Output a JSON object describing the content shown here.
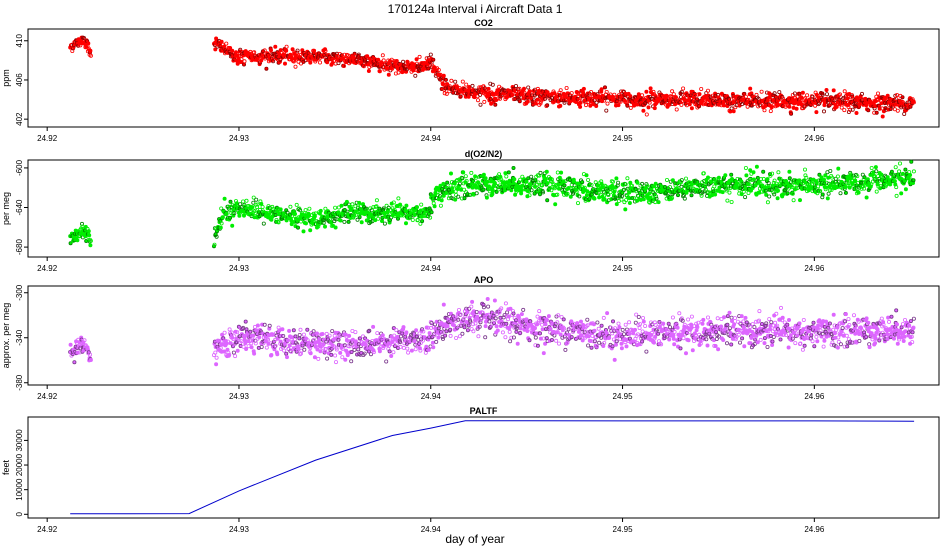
{
  "figure": {
    "title": "170124a   Interval i Aircraft Data 1",
    "xlabel": "day of year"
  },
  "chart_data": [
    {
      "type": "scatter",
      "title": "CO2",
      "ylabel": "ppm",
      "xlim": [
        24.919,
        24.9665
      ],
      "ylim": [
        401.2,
        411.2
      ],
      "xticks": [
        24.92,
        24.93,
        24.94,
        24.95,
        24.96
      ],
      "xtick_labels": [
        "24.92",
        "24.93",
        "24.94",
        "24.95",
        "24.96"
      ],
      "yticks": [
        402,
        406,
        410
      ],
      "ytick_labels": [
        "402",
        "406",
        "410"
      ],
      "color": "#ff0000",
      "grid": false,
      "segments": [
        {
          "x_start": 24.9212,
          "x_end": 24.9223,
          "points": [
            [
              24.9212,
              409.4
            ],
            [
              24.9216,
              409.8
            ],
            [
              24.9219,
              410.2
            ],
            [
              24.9221,
              409.5
            ],
            [
              24.9223,
              408.6
            ]
          ],
          "noise": 0.45
        },
        {
          "x_start": 24.9287,
          "x_end": 24.93,
          "points": [
            [
              24.9287,
              409.9
            ],
            [
              24.9291,
              409.3
            ],
            [
              24.93,
              408.2
            ]
          ],
          "noise": 0.55
        },
        {
          "x_start": 24.93,
          "x_end": 24.94,
          "points": [
            [
              24.93,
              408.4
            ],
            [
              24.934,
              408.4
            ],
            [
              24.936,
              408.1
            ],
            [
              24.938,
              407.5
            ],
            [
              24.9395,
              407.2
            ],
            [
              24.94,
              407.9
            ]
          ],
          "noise": 0.6
        },
        {
          "x_start": 24.94,
          "x_end": 24.9652,
          "points": [
            [
              24.94,
              407.6
            ],
            [
              24.9408,
              405.3
            ],
            [
              24.942,
              404.8
            ],
            [
              24.945,
              404.3
            ],
            [
              24.95,
              404.1
            ],
            [
              24.955,
              403.9
            ],
            [
              24.96,
              403.8
            ],
            [
              24.9652,
              403.6
            ]
          ],
          "noise": 0.7
        }
      ]
    },
    {
      "type": "scatter",
      "title": "d(O2/N2)",
      "ylabel": "per meg",
      "xlim": [
        24.919,
        24.9665
      ],
      "ylim": [
        -690,
        -592
      ],
      "xticks": [
        24.92,
        24.93,
        24.94,
        24.95,
        24.96
      ],
      "xtick_labels": [
        "24.92",
        "24.93",
        "24.94",
        "24.95",
        "24.96"
      ],
      "yticks": [
        -680,
        -640,
        -600
      ],
      "ytick_labels": [
        "-680",
        "-640",
        "-600"
      ],
      "color": "#00ee00",
      "grid": false,
      "segments": [
        {
          "x_start": 24.9212,
          "x_end": 24.9223,
          "points": [
            [
              24.9212,
              -672
            ],
            [
              24.9216,
              -668
            ],
            [
              24.9219,
              -662
            ],
            [
              24.9223,
              -672
            ]
          ],
          "noise": 7
        },
        {
          "x_start": 24.9287,
          "x_end": 24.94,
          "points": [
            [
              24.9287,
              -670
            ],
            [
              24.9292,
              -645
            ],
            [
              24.93,
              -640
            ],
            [
              24.932,
              -648
            ],
            [
              24.934,
              -652
            ],
            [
              24.936,
              -645
            ],
            [
              24.938,
              -647
            ],
            [
              24.94,
              -645
            ]
          ],
          "noise": 8
        },
        {
          "x_start": 24.94,
          "x_end": 24.9652,
          "points": [
            [
              24.94,
              -635
            ],
            [
              24.941,
              -620
            ],
            [
              24.944,
              -615
            ],
            [
              24.95,
              -625
            ],
            [
              24.955,
              -618
            ],
            [
              24.96,
              -618
            ],
            [
              24.9652,
              -610
            ]
          ],
          "noise": 10
        }
      ]
    },
    {
      "type": "scatter",
      "title": "APO",
      "ylabel": "approx. per meg",
      "xlim": [
        24.919,
        24.9665
      ],
      "ylim": [
        -382,
        -294
      ],
      "xticks": [
        24.92,
        24.93,
        24.94,
        24.95,
        24.96
      ],
      "xtick_labels": [
        "24.92",
        "24.93",
        "24.94",
        "24.95",
        "24.96"
      ],
      "yticks": [
        -380,
        -340,
        -300
      ],
      "ytick_labels": [
        "-380",
        "-340",
        "-300"
      ],
      "color": "#dd66ff",
      "grid": false,
      "segments": [
        {
          "x_start": 24.9212,
          "x_end": 24.9223,
          "points": [
            [
              24.9212,
              -356
            ],
            [
              24.9217,
              -346
            ],
            [
              24.922,
              -348
            ],
            [
              24.9223,
              -360
            ]
          ],
          "noise": 7
        },
        {
          "x_start": 24.9287,
          "x_end": 24.94,
          "points": [
            [
              24.9287,
              -352
            ],
            [
              24.93,
              -340
            ],
            [
              24.933,
              -344
            ],
            [
              24.936,
              -346
            ],
            [
              24.938,
              -343
            ],
            [
              24.94,
              -340
            ]
          ],
          "noise": 10
        },
        {
          "x_start": 24.94,
          "x_end": 24.9652,
          "points": [
            [
              24.94,
              -335
            ],
            [
              24.942,
              -322
            ],
            [
              24.946,
              -332
            ],
            [
              24.95,
              -338
            ],
            [
              24.955,
              -334
            ],
            [
              24.96,
              -336
            ],
            [
              24.9652,
              -332
            ]
          ],
          "noise": 11
        }
      ]
    },
    {
      "type": "line",
      "title": "PALTF",
      "ylabel": "feet",
      "xlim": [
        24.919,
        24.9665
      ],
      "ylim": [
        -1500,
        39500
      ],
      "xticks": [
        24.92,
        24.93,
        24.94,
        24.95,
        24.96
      ],
      "xtick_labels": [
        "24.92",
        "24.93",
        "24.94",
        "24.95",
        "24.96"
      ],
      "yticks": [
        0,
        10000,
        20000,
        30000
      ],
      "ytick_labels": [
        "0",
        "10000",
        "20000",
        "30000"
      ],
      "color": "#0000cc",
      "grid": false,
      "x": [
        24.9212,
        24.9274,
        24.93,
        24.934,
        24.938,
        24.94,
        24.9418,
        24.945,
        24.95,
        24.955,
        24.96,
        24.9652
      ],
      "y": [
        200,
        300,
        9500,
        22000,
        32000,
        35000,
        38000,
        38000,
        37900,
        37900,
        37900,
        37800
      ]
    }
  ]
}
